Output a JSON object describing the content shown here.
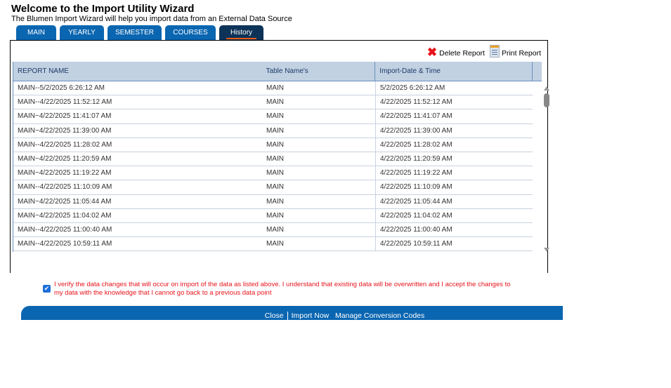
{
  "title": "Welcome to the Import Utility Wizard",
  "subtitle": "The Blumen Import Wizard will help you import data from an External Data Source",
  "tabs": [
    {
      "label": "MAIN"
    },
    {
      "label": "YEARLY"
    },
    {
      "label": "SEMESTER"
    },
    {
      "label": "COURSES"
    },
    {
      "label": "History",
      "active": true
    }
  ],
  "toolbar": {
    "delete_label": "Delete Report",
    "print_label": "Print Report",
    "delete_icon": "red-x-icon",
    "print_icon": "report-icon"
  },
  "table": {
    "columns": [
      "REPORT NAME",
      "Table Name's",
      "Import-Date & Time"
    ],
    "rows": [
      [
        "MAIN--5/2/2025 6:26:12 AM",
        "MAIN",
        "5/2/2025 6:26:12 AM"
      ],
      [
        "MAIN--4/22/2025 11:52:12 AM",
        "MAIN",
        "4/22/2025 11:52:12 AM"
      ],
      [
        "MAIN~4/22/2025 11:41:07 AM",
        "MAIN",
        "4/22/2025 11:41:07 AM"
      ],
      [
        "MAIN~4/22/2025 11:39:00 AM",
        "MAIN",
        "4/22/2025 11:39:00 AM"
      ],
      [
        "MAIN--4/22/2025 11:28:02 AM",
        "MAIN",
        "4/22/2025 11:28:02 AM"
      ],
      [
        "MAIN~4/22/2025 11:20:59 AM",
        "MAIN",
        "4/22/2025 11:20:59 AM"
      ],
      [
        "MAIN~4/22/2025 11:19:22 AM",
        "MAIN",
        "4/22/2025 11:19:22 AM"
      ],
      [
        "MAIN--4/22/2025 11:10:09 AM",
        "MAIN",
        "4/22/2025 11:10:09 AM"
      ],
      [
        "MAIN~4/22/2025 11:05:44 AM",
        "MAIN",
        "4/22/2025 11:05:44 AM"
      ],
      [
        "MAIN~4/22/2025 11:04:02 AM",
        "MAIN",
        "4/22/2025 11:04:02 AM"
      ],
      [
        "MAIN--4/22/2025 11:00:40 AM",
        "MAIN",
        "4/22/2025 11:00:40 AM"
      ],
      [
        "MAIN--4/22/2025 10:59:11 AM",
        "MAIN",
        "4/22/2025 10:59:11 AM"
      ]
    ]
  },
  "verify": {
    "checked": true,
    "text": "I verify the data changes that will occur on import of the data as listed above. I understand that existing data will be overwritten and I accept the changes to my data with the knowledge that I cannot go back to a previous data point"
  },
  "actions": {
    "close": "Close",
    "import": "Import Now",
    "manage": "Manage Conversion Codes"
  },
  "colors": {
    "tab": "#0b66b1",
    "active_tab": "#0d3358",
    "accent": "#f05a14",
    "warning": "#e8141c",
    "header": "#c1d1e1"
  }
}
